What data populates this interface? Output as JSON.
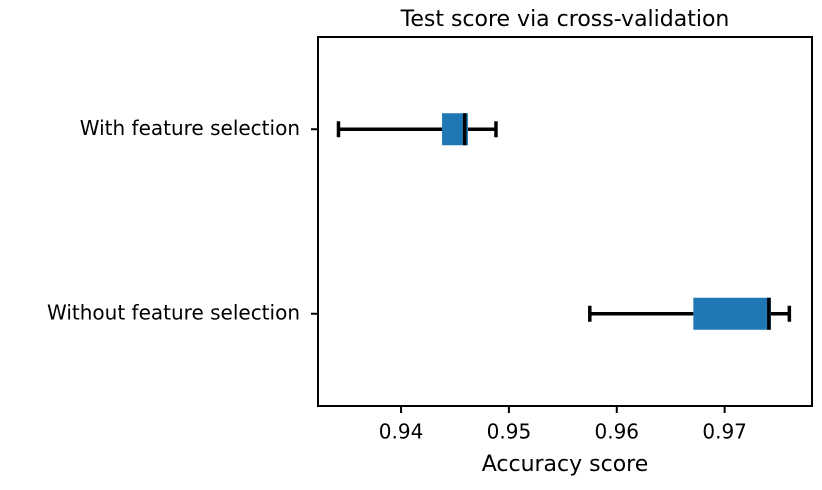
{
  "chart_data": {
    "type": "boxplot",
    "orientation": "horizontal",
    "title": "Test score via cross-validation",
    "xlabel": "Accuracy score",
    "categories": [
      "With feature selection",
      "Without feature selection"
    ],
    "boxes": [
      {
        "whislo": 0.9342,
        "q1": 0.9438,
        "med": 0.9459,
        "q3": 0.9462,
        "whishi": 0.9488
      },
      {
        "whislo": 0.9575,
        "q1": 0.9671,
        "med": 0.9741,
        "q3": 0.9743,
        "whishi": 0.976
      }
    ],
    "color": "#1f77b4",
    "xlim": [
      0.9323,
      0.9781
    ],
    "xticks": [
      0.94,
      0.95,
      0.96,
      0.97
    ],
    "grid": false
  }
}
